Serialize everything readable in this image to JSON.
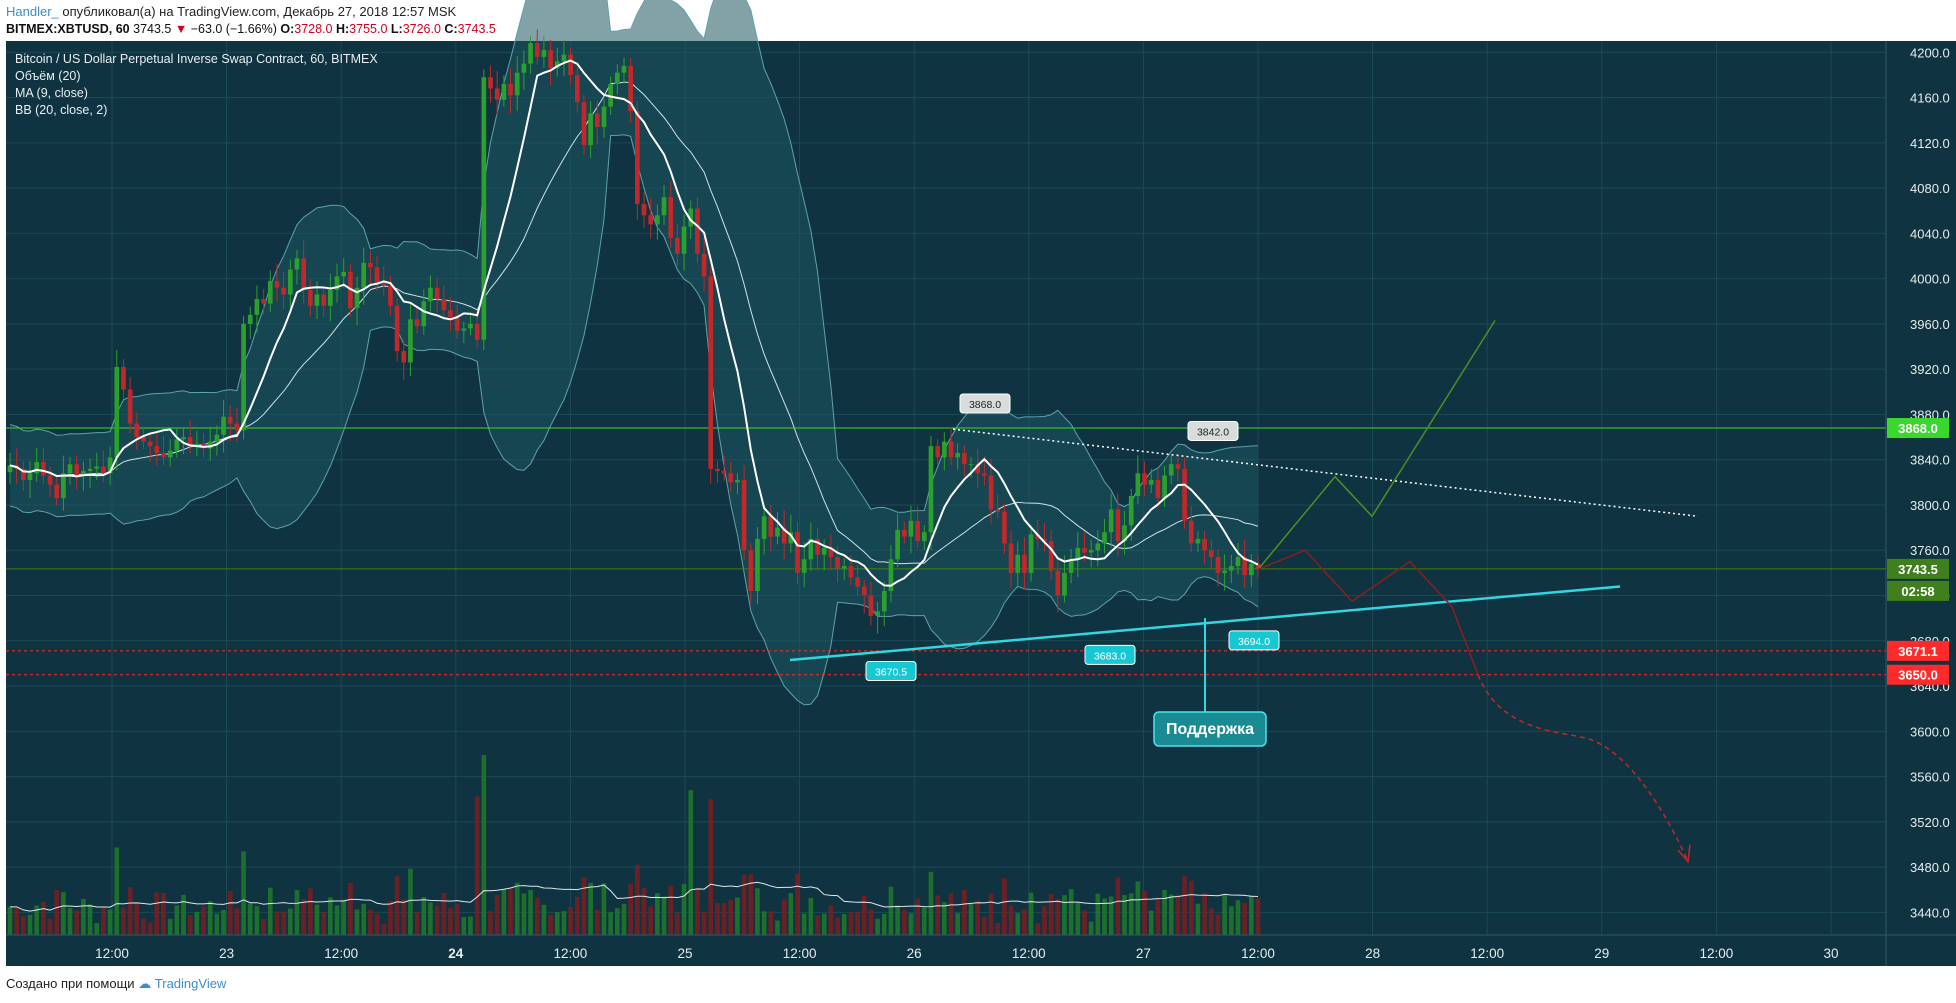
{
  "header": {
    "author": "Handler_",
    "published": "опубликовал(а) на TradingView.com, Декабрь 27, 2018 12:57 MSK",
    "symbol": "BITMEX:XBTUSD, 60",
    "last": "3743.5",
    "change": "−63.0 (−1.66%)",
    "o_label": "O:",
    "o_value": "3728.0",
    "h_label": "H:",
    "h_value": "3755.0",
    "l_label": "L:",
    "l_value": "3726.0",
    "c_label": "C:",
    "c_value": "3743.5"
  },
  "footer": {
    "text": "Создано при помощи",
    "brand": "TradingView"
  },
  "colors": {
    "bg": "#0f3340",
    "up": "#2ca02c",
    "down": "#c0282a",
    "band_fill": "#1e5560",
    "band_line": "#5fa3aa",
    "support": "#33d6e0",
    "resist_dotted": "#ffffff",
    "hline_green": "#39d82d",
    "hline_red": "#ff2b2b",
    "forecast_up": "#4e8f26",
    "forecast_down": "#8b1f1f"
  },
  "chart_data": {
    "type": "candlestick",
    "title": "Bitcoin / US Dollar Perpetual Inverse Swap Contract, 60, BITMEX",
    "indicators": [
      "Объём (20)",
      "MA (9, close)",
      "BB (20, close, 2)"
    ],
    "ylim": [
      3420,
      4210
    ],
    "yticks": [
      3440,
      3480,
      3520,
      3560,
      3600,
      3640,
      3680,
      3720,
      3760,
      3800,
      3840,
      3880,
      3920,
      3960,
      4000,
      4040,
      4080,
      4120,
      4160,
      4200
    ],
    "xticks": [
      "12:00",
      "23",
      "12:00",
      "24",
      "12:00",
      "25",
      "12:00",
      "26",
      "12:00",
      "27",
      "12:00",
      "28",
      "12:00",
      "29",
      "12:00",
      "30"
    ],
    "xticks_bold": [
      "24"
    ],
    "price_tags": [
      {
        "label": "3868.0",
        "value": 3868.0,
        "color": "#39d82d"
      },
      {
        "label": "3743.5",
        "value": 3743.5,
        "color": "#3f7f1e"
      },
      {
        "label": "02:58",
        "value": 3726,
        "color": "#3f7f1e"
      },
      {
        "label": "3671.1",
        "value": 3671.1,
        "color": "#ff2b2b"
      },
      {
        "label": "3650.0",
        "value": 3650.0,
        "color": "#ff2b2b"
      }
    ],
    "hlines": [
      {
        "value": 3868.0,
        "style": "solid",
        "color": "#39d82d"
      },
      {
        "value": 3743.5,
        "style": "solid",
        "color": "#3f7f1e"
      },
      {
        "value": 3671.1,
        "style": "dashed",
        "color": "#ff2b2b"
      },
      {
        "value": 3650.0,
        "style": "dashed",
        "color": "#ff2b2b"
      }
    ],
    "callouts": [
      {
        "label": "3868.0",
        "value": 3868.0,
        "kind": "high"
      },
      {
        "label": "3842.0",
        "value": 3842.0,
        "kind": "high"
      },
      {
        "label": "3670.5",
        "value": 3670.5,
        "kind": "low"
      },
      {
        "label": "3683.0",
        "value": 3683.0,
        "kind": "low"
      },
      {
        "label": "3694.0",
        "value": 3694.0,
        "kind": "low"
      }
    ],
    "support_label": "Поддержка",
    "close": [
      3835,
      3832,
      3822,
      3828,
      3838,
      3826,
      3818,
      3806,
      3828,
      3836,
      3826,
      3830,
      3832,
      3834,
      3828,
      3842,
      3922,
      3902,
      3872,
      3860,
      3856,
      3852,
      3846,
      3842,
      3848,
      3858,
      3860,
      3852,
      3854,
      3850,
      3856,
      3862,
      3878,
      3872,
      3866,
      3960,
      3968,
      3982,
      3978,
      3998,
      3992,
      3986,
      4008,
      4018,
      3990,
      3976,
      3986,
      3976,
      3990,
      4002,
      4006,
      3974,
      3992,
      4014,
      4010,
      3996,
      3994,
      3976,
      3936,
      3926,
      3964,
      3958,
      3980,
      3992,
      3982,
      3972,
      3966,
      3954,
      3956,
      3960,
      3946,
      4178,
      4168,
      4158,
      4172,
      4162,
      4182,
      4190,
      4208,
      4196,
      4202,
      4186,
      4192,
      4198,
      4180,
      4156,
      4118,
      4146,
      4134,
      4152,
      4172,
      4182,
      4188,
      4148,
      4066,
      4056,
      4048,
      4056,
      4072,
      4036,
      4022,
      4046,
      4062,
      4022,
      4002,
      3832,
      3830,
      3828,
      3820,
      3822,
      3760,
      3724,
      3770,
      3790,
      3772,
      3780,
      3766,
      3776,
      3740,
      3752,
      3770,
      3756,
      3762,
      3754,
      3744,
      3746,
      3736,
      3728,
      3720,
      3702,
      3706,
      3724,
      3752,
      3778,
      3772,
      3786,
      3768,
      3776,
      3852,
      3842,
      3856,
      3842,
      3846,
      3836,
      3836,
      3828,
      3826,
      3796,
      3794,
      3766,
      3740,
      3756,
      3740,
      3774,
      3770,
      3768,
      3742,
      3720,
      3740,
      3752,
      3762,
      3758,
      3760,
      3766,
      3776,
      3796,
      3768,
      3782,
      3808,
      3828,
      3818,
      3822,
      3806,
      3826,
      3836,
      3832,
      3786,
      3766,
      3770,
      3760,
      3754,
      3740,
      3742,
      3746,
      3754,
      3738,
      3748,
      3743.5
    ],
    "volume_note": "volume histogram below price with moving average line",
    "forecast_note": "hand-drawn projected paths: green zig-zag up, dark red zig-zag down with dashed arrow"
  },
  "chart_labels": {
    "legend_title": "Bitcoin / US Dollar Perpetual Inverse Swap Contract, 60, BITMEX",
    "legend_vol": "Объём (20)",
    "legend_ma": "MA (9, close)",
    "legend_bb": "BB (20, close, 2)"
  }
}
